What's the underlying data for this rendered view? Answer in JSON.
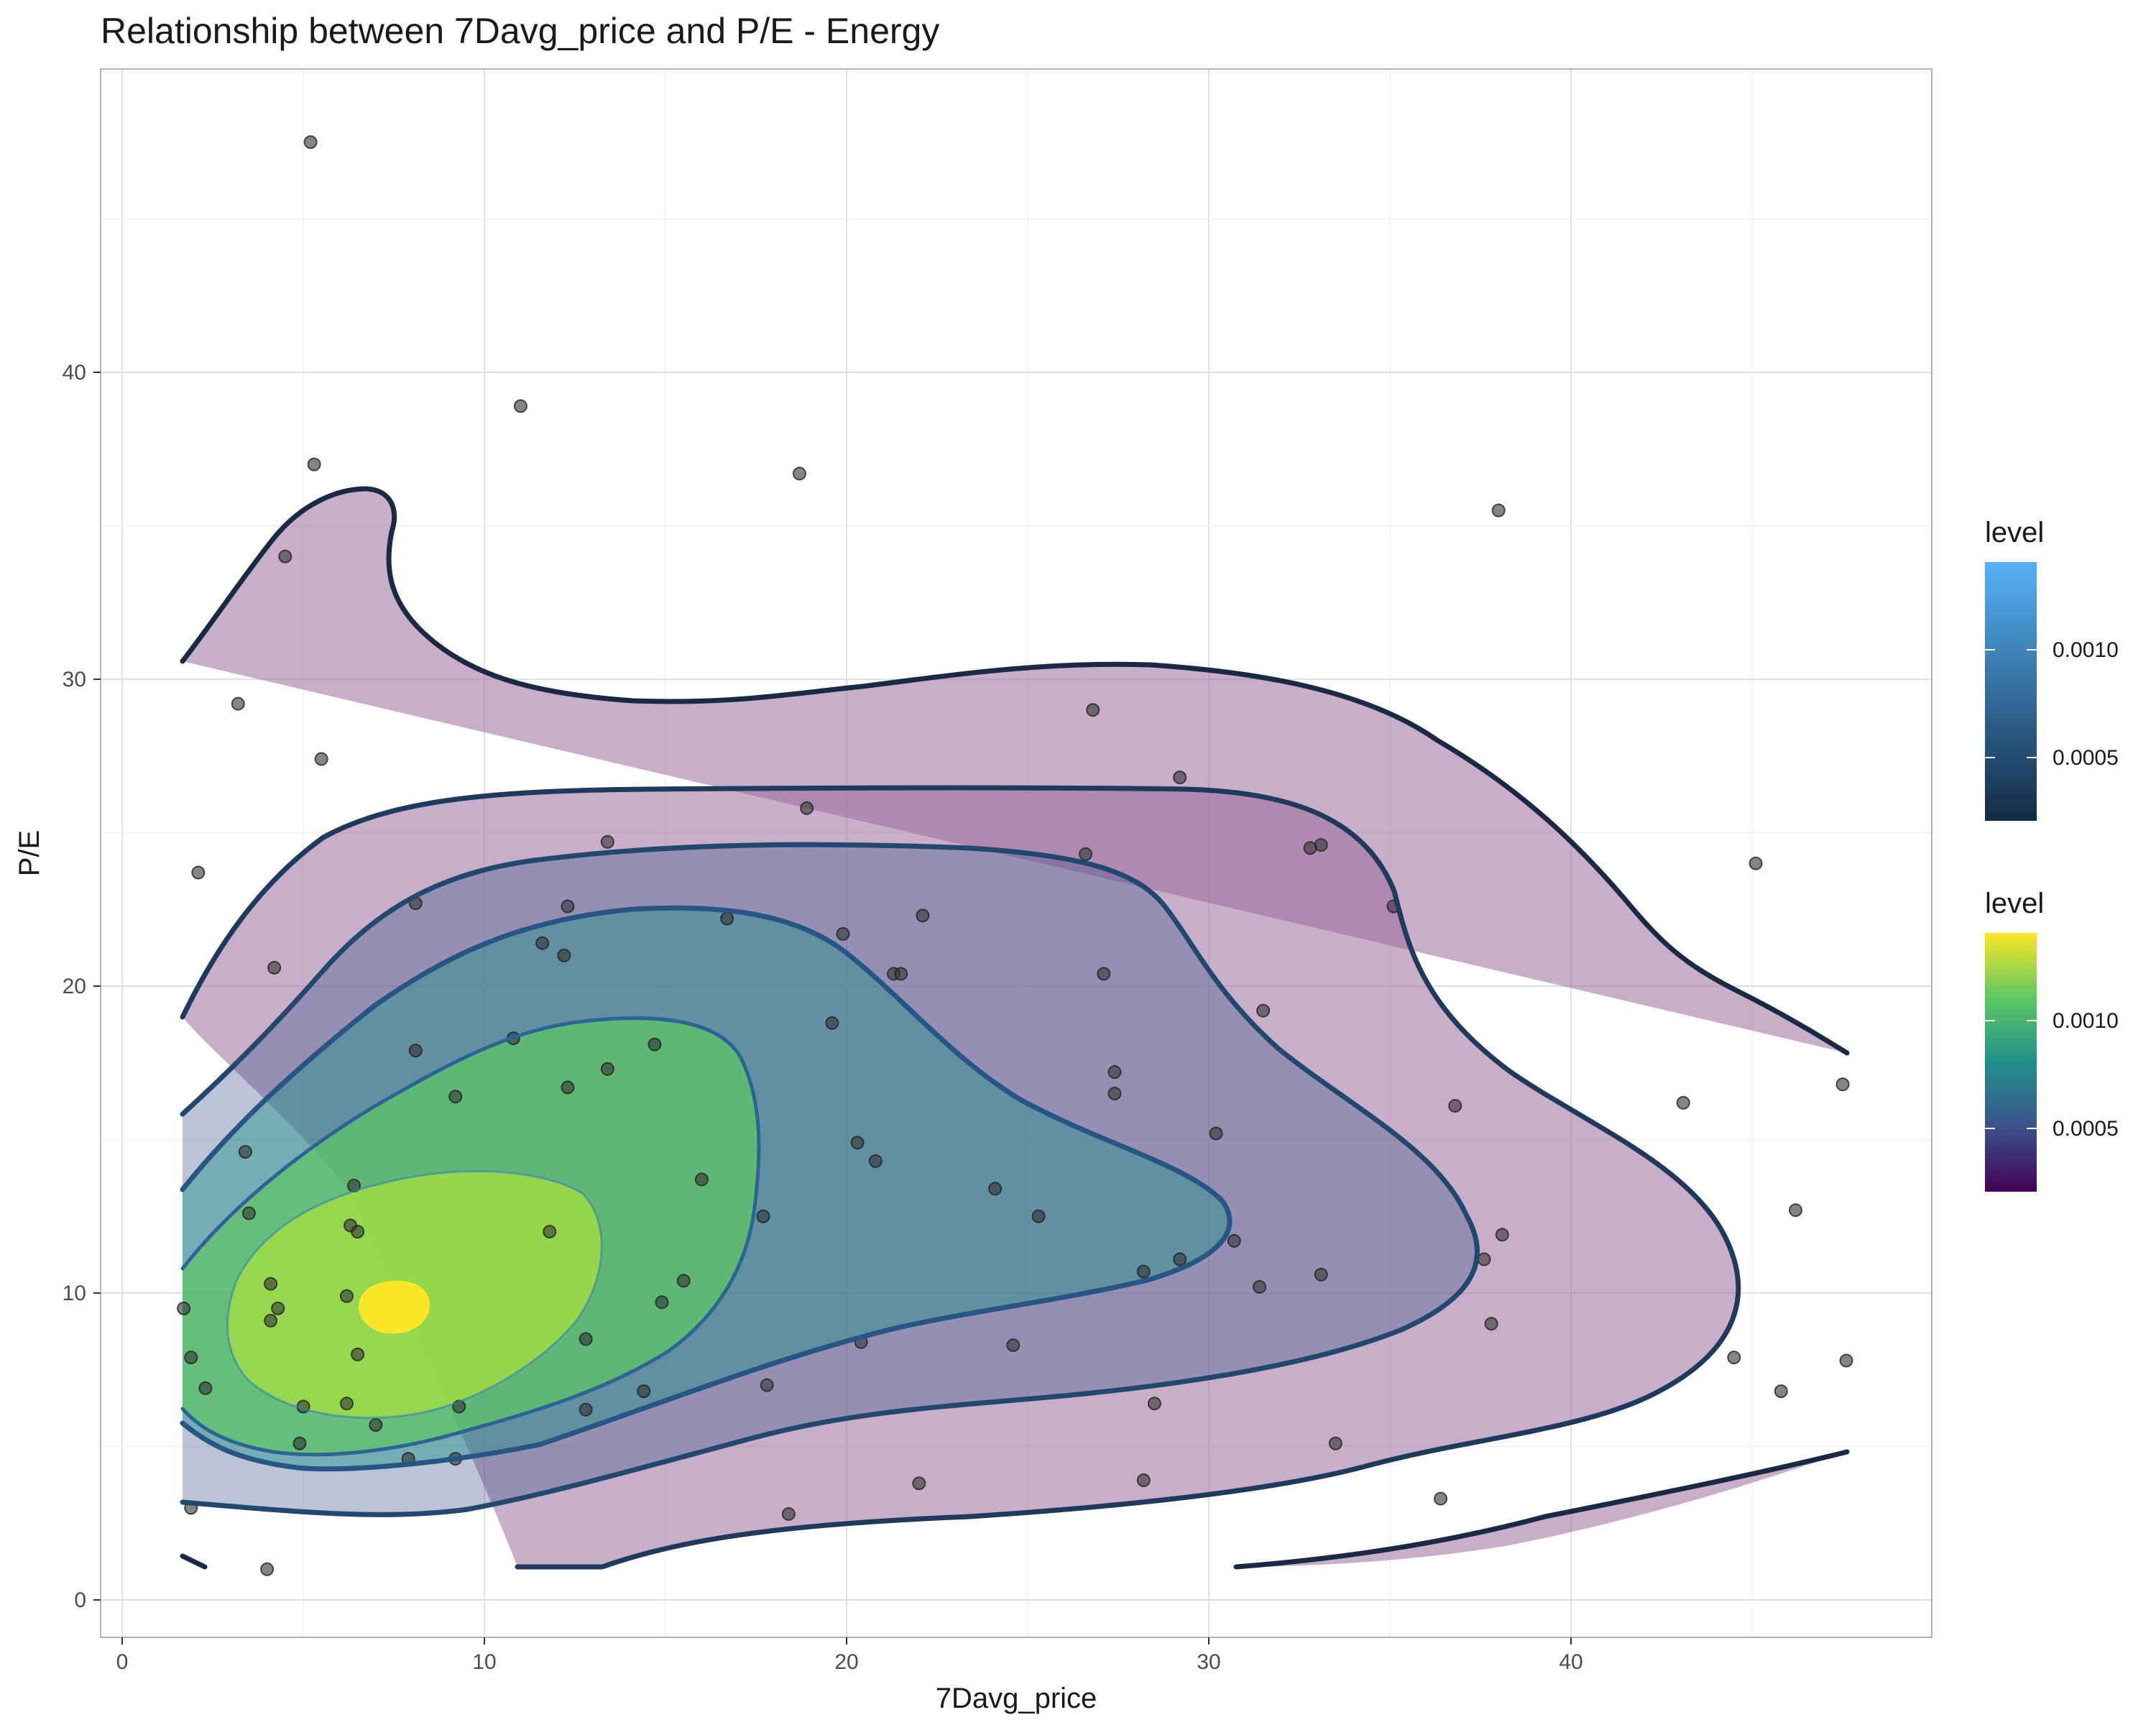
{
  "chart_data": {
    "type": "scatter",
    "subtype": "2d-density-contour-with-points",
    "title": "Relationship between 7Davg_price and P/E - Energy",
    "xlabel": "7Davg_price",
    "ylabel": "P/E",
    "xlim": [
      -0.5,
      50
    ],
    "ylim": [
      -1.2,
      50
    ],
    "xticks": [
      0,
      10,
      20,
      30,
      40
    ],
    "yticks": [
      0,
      10,
      20,
      30,
      40
    ],
    "grid": true,
    "point_color": "#333333",
    "points": [
      [
        5.2,
        47.5
      ],
      [
        11.0,
        38.9
      ],
      [
        5.3,
        37.0
      ],
      [
        18.7,
        36.7
      ],
      [
        38.0,
        35.5
      ],
      [
        4.5,
        34.0
      ],
      [
        3.2,
        29.2
      ],
      [
        26.8,
        29.0
      ],
      [
        5.5,
        27.4
      ],
      [
        29.2,
        26.8
      ],
      [
        18.9,
        25.8
      ],
      [
        13.4,
        24.7
      ],
      [
        33.1,
        24.6
      ],
      [
        32.8,
        24.5
      ],
      [
        26.6,
        24.3
      ],
      [
        45.1,
        24.0
      ],
      [
        2.1,
        23.7
      ],
      [
        8.1,
        22.7
      ],
      [
        12.3,
        22.6
      ],
      [
        35.1,
        22.6
      ],
      [
        22.1,
        22.3
      ],
      [
        16.7,
        22.2
      ],
      [
        11.6,
        21.4
      ],
      [
        12.2,
        21.0
      ],
      [
        19.9,
        21.7
      ],
      [
        4.2,
        20.6
      ],
      [
        21.3,
        20.4
      ],
      [
        21.5,
        20.4
      ],
      [
        27.1,
        20.4
      ],
      [
        31.5,
        19.2
      ],
      [
        19.6,
        18.8
      ],
      [
        10.8,
        18.3
      ],
      [
        14.7,
        18.1
      ],
      [
        8.1,
        17.9
      ],
      [
        13.4,
        17.3
      ],
      [
        27.4,
        17.2
      ],
      [
        12.3,
        16.7
      ],
      [
        27.4,
        16.5
      ],
      [
        9.2,
        16.4
      ],
      [
        47.5,
        16.8
      ],
      [
        43.1,
        16.2
      ],
      [
        36.8,
        16.1
      ],
      [
        30.2,
        15.2
      ],
      [
        20.3,
        14.9
      ],
      [
        3.4,
        14.6
      ],
      [
        20.8,
        14.3
      ],
      [
        16.0,
        13.7
      ],
      [
        6.4,
        13.5
      ],
      [
        24.1,
        13.4
      ],
      [
        46.2,
        12.7
      ],
      [
        3.5,
        12.6
      ],
      [
        17.7,
        12.5
      ],
      [
        25.3,
        12.5
      ],
      [
        6.3,
        12.2
      ],
      [
        6.5,
        12.0
      ],
      [
        11.8,
        12.0
      ],
      [
        38.1,
        11.9
      ],
      [
        30.7,
        11.7
      ],
      [
        29.2,
        11.1
      ],
      [
        37.6,
        11.1
      ],
      [
        28.2,
        10.7
      ],
      [
        33.1,
        10.6
      ],
      [
        15.5,
        10.4
      ],
      [
        4.1,
        10.3
      ],
      [
        31.4,
        10.2
      ],
      [
        6.2,
        9.9
      ],
      [
        14.9,
        9.7
      ],
      [
        1.7,
        9.5
      ],
      [
        4.3,
        9.5
      ],
      [
        4.1,
        9.1
      ],
      [
        37.8,
        9.0
      ],
      [
        12.8,
        8.5
      ],
      [
        20.4,
        8.4
      ],
      [
        24.6,
        8.3
      ],
      [
        6.5,
        8.0
      ],
      [
        1.9,
        7.9
      ],
      [
        44.5,
        7.9
      ],
      [
        47.6,
        7.8
      ],
      [
        17.8,
        7.0
      ],
      [
        2.3,
        6.9
      ],
      [
        45.8,
        6.8
      ],
      [
        14.4,
        6.8
      ],
      [
        28.5,
        6.4
      ],
      [
        6.2,
        6.4
      ],
      [
        5.0,
        6.3
      ],
      [
        9.3,
        6.3
      ],
      [
        12.8,
        6.2
      ],
      [
        7.0,
        5.7
      ],
      [
        4.9,
        5.1
      ],
      [
        33.5,
        5.1
      ],
      [
        7.9,
        4.6
      ],
      [
        9.2,
        4.6
      ],
      [
        22.0,
        3.8
      ],
      [
        28.2,
        3.9
      ],
      [
        36.4,
        3.3
      ],
      [
        1.9,
        3.0
      ],
      [
        18.4,
        2.8
      ],
      [
        4.0,
        1.0
      ]
    ],
    "legends": [
      {
        "title": "level",
        "breaks": [
          "0.0005",
          "0.0010"
        ],
        "colors": [
          "#132B43",
          "#56B1F7"
        ],
        "aesthetic": "contour line colour"
      },
      {
        "title": "level",
        "breaks": [
          "0.0005",
          "0.0010"
        ],
        "colors": [
          "#440154",
          "#3B528B",
          "#21908C",
          "#5DC863",
          "#FDE725"
        ],
        "aesthetic": "fill"
      }
    ],
    "legend_position": "right"
  }
}
